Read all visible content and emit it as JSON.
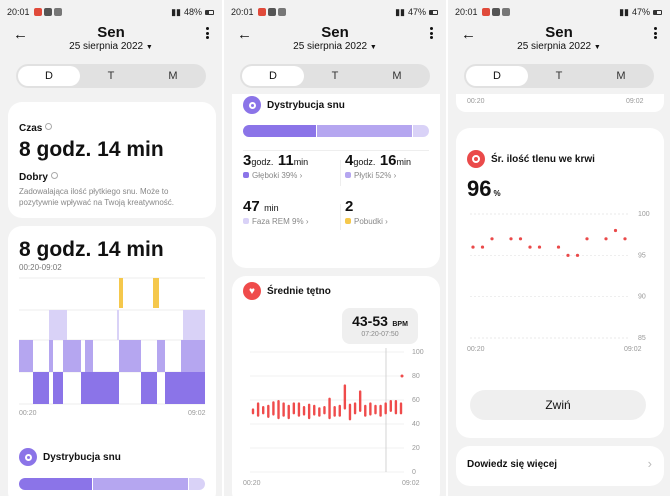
{
  "colors": {
    "deep": "#8b74e8",
    "light": "#b5a6f0",
    "rem": "#d9d2f7",
    "awake": "#f5c84c",
    "heart": "#ef4b4b",
    "oxygen": "#ea4a4a"
  },
  "status": {
    "time": "20:01",
    "battery1": "48%",
    "battery2": "47%",
    "battery3": "47%"
  },
  "header": {
    "title": "Sen",
    "date": "25 sierpnia 2022",
    "back_icon": "arrow-left-icon",
    "menu_icon": "more-vertical-icon"
  },
  "tabs": [
    "D",
    "T",
    "M"
  ],
  "panel1": {
    "time_label": "Czas",
    "total_time": "8 godz. 14 min",
    "quality_label": "Dobry",
    "quality_desc": "Zadowalająca ilość płytkiego snu. Może to pozytywnie wpływać na Twoją kreatywność.",
    "chart_total": "8 godz. 14 min",
    "chart_range": "00:20-09:02",
    "x_start": "00:20",
    "x_end": "09:02",
    "dist_title": "Dystrybucja snu"
  },
  "panel2": {
    "dist_title": "Dystrybucja snu",
    "stats": [
      {
        "big1": "3",
        "unit1": "godz.",
        "big2": "11",
        "unit2": "min",
        "label": "Głęboki 39%",
        "color": "#8b74e8"
      },
      {
        "big1": "4",
        "unit1": "godz.",
        "big2": "16",
        "unit2": "min",
        "label": "Płytki 52%",
        "color": "#b5a6f0"
      },
      {
        "big1": "47",
        "unit1": "min",
        "big2": "",
        "unit2": "",
        "label": "Faza REM 9%",
        "color": "#d9d2f7"
      },
      {
        "big1": "2",
        "unit1": "",
        "big2": "",
        "unit2": "",
        "label": "Pobudki",
        "color": "#f5c84c"
      }
    ],
    "hr_title": "Średnie tętno",
    "hr_tooltip_value": "43-53",
    "hr_tooltip_unit": "BPM",
    "hr_tooltip_time": "07:20-07:50",
    "hr_x_start": "00:20",
    "hr_x_end": "09:02",
    "hr_y_ticks": [
      "100",
      "80",
      "60",
      "40",
      "20",
      "0"
    ],
    "top_x_start": "00:20",
    "top_x_end": "09:02"
  },
  "panel3": {
    "top_x_start": "00:20",
    "top_x_end": "09:02",
    "ox_title": "Śr. ilość tlenu we krwi",
    "ox_value": "96",
    "ox_unit": "%",
    "ox_y_ticks": [
      "100",
      "95",
      "90",
      "85"
    ],
    "ox_x_start": "00:20",
    "ox_x_end": "09:02",
    "collapse_label": "Zwiń",
    "learn_more": "Dowiedz się więcej"
  },
  "chart_data": [
    {
      "type": "bar",
      "title": "Dystrybucja snu",
      "categories": [
        "Głęboki",
        "Płytki",
        "Faza REM"
      ],
      "values": [
        39,
        52,
        9
      ],
      "unit": "%"
    },
    {
      "type": "bar",
      "title": "Średnie tętno",
      "xlabel": "",
      "ylabel": "BPM",
      "ylim": [
        0,
        100
      ],
      "x": [
        "00:20",
        "",
        "",
        "",
        "",
        "",
        "",
        "",
        "",
        "",
        "",
        "",
        "",
        "",
        "",
        "",
        "",
        "",
        "",
        "",
        "",
        "",
        "",
        "",
        "",
        "",
        "",
        "",
        "",
        "09:02"
      ],
      "series": [
        {
          "values_low": [
            48,
            46,
            48,
            45,
            47,
            44,
            46,
            44,
            48,
            46,
            47,
            44,
            47,
            46,
            48,
            44,
            46,
            46,
            52,
            43,
            48,
            50,
            46,
            47,
            48,
            46,
            48,
            50,
            48,
            48
          ],
          "values_high": [
            53,
            58,
            55,
            56,
            59,
            60,
            58,
            56,
            58,
            58,
            55,
            57,
            56,
            54,
            55,
            62,
            55,
            56,
            73,
            57,
            58,
            68,
            56,
            58,
            56,
            56,
            58,
            60,
            60,
            58
          ]
        }
      ]
    },
    {
      "type": "scatter",
      "title": "Śr. ilość tlenu we krwi",
      "ylim": [
        85,
        100
      ],
      "x": [
        "00:20",
        "",
        "",
        "",
        "",
        "",
        "",
        "",
        "",
        "",
        "",
        "",
        "",
        "",
        "",
        "",
        "09:02"
      ],
      "values": [
        96,
        96,
        97,
        null,
        97,
        97,
        96,
        96,
        null,
        96,
        95,
        95,
        97,
        null,
        97,
        98,
        97
      ]
    }
  ]
}
